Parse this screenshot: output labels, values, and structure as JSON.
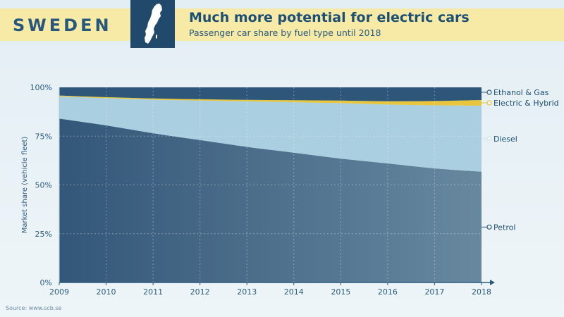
{
  "header": {
    "country": "SWEDEN",
    "title": "Much more potential for electric cars",
    "subtitle": "Passenger car share by fuel type until 2018"
  },
  "source": "Source: www.scb.se",
  "colors": {
    "header_band": "#f7eaa6",
    "map_box": "#21496b",
    "petrol": "#3d6289",
    "diesel": "#a9cfe0",
    "electric_hybrid": "#e7c63d",
    "ethanol_gas": "#2e5679",
    "axis_text": "#2b5a7e"
  },
  "chart_data": {
    "type": "area",
    "stacked": true,
    "ylabel": "Market share (vehicle fleet)",
    "xlabel": "",
    "x": [
      2009,
      2010,
      2011,
      2012,
      2013,
      2014,
      2015,
      2016,
      2017,
      2018
    ],
    "y_ticks": [
      "0%",
      "25%",
      "50%",
      "75%",
      "100%"
    ],
    "ylim": [
      0,
      100
    ],
    "grid": true,
    "legend_placement": "right",
    "series": [
      {
        "name": "Petrol",
        "values": [
          84,
          80.5,
          76.5,
          73,
          69.5,
          66.5,
          63.5,
          61,
          58.5,
          56.8
        ]
      },
      {
        "name": "Diesel",
        "values": [
          11.3,
          14,
          17.2,
          20.2,
          23.3,
          25.9,
          28.4,
          30.2,
          32.3,
          33.8
        ]
      },
      {
        "name": "Electric & Hybrid",
        "values": [
          0.5,
          0.5,
          0.6,
          0.7,
          0.8,
          1.0,
          1.3,
          1.7,
          2.2,
          2.9
        ]
      },
      {
        "name": "Ethanol & Gas",
        "values": [
          4.2,
          5.0,
          5.7,
          6.1,
          6.4,
          6.6,
          6.8,
          7.1,
          7.0,
          6.5
        ]
      }
    ]
  }
}
